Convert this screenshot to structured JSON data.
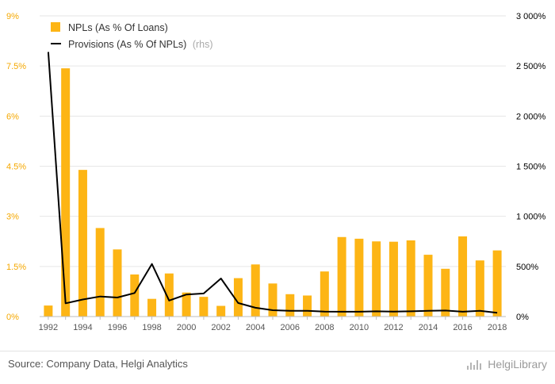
{
  "chart_data": {
    "type": "bar+line",
    "x": [
      "1992",
      "1993",
      "1994",
      "1995",
      "1996",
      "1997",
      "1998",
      "1999",
      "2000",
      "2001",
      "2002",
      "2003",
      "2004",
      "2005",
      "2006",
      "2007",
      "2008",
      "2009",
      "2010",
      "2011",
      "2012",
      "2013",
      "2014",
      "2015",
      "2016",
      "2017",
      "2018"
    ],
    "x_tick_labels": [
      "1992",
      "1994",
      "1996",
      "1998",
      "2000",
      "2002",
      "2004",
      "2006",
      "2008",
      "2010",
      "2012",
      "2014",
      "2016",
      "2018"
    ],
    "series": [
      {
        "name": "NPLs (As % Of Loans)",
        "type": "bar",
        "axis": "left",
        "color": "#FDB515",
        "values": [
          0.33,
          7.43,
          4.39,
          2.65,
          2.01,
          1.26,
          0.53,
          1.29,
          0.72,
          0.59,
          0.32,
          1.15,
          1.56,
          0.99,
          0.67,
          0.63,
          1.35,
          2.38,
          2.33,
          2.25,
          2.24,
          2.28,
          1.85,
          1.43,
          2.4,
          1.68,
          1.98
        ]
      },
      {
        "name": "Provisions (As % Of NPLs)",
        "name_suffix": "(rhs)",
        "type": "line",
        "axis": "right",
        "color": "#000000",
        "values": [
          2640,
          132,
          170,
          200,
          190,
          235,
          525,
          160,
          220,
          230,
          380,
          135,
          88,
          63,
          57,
          57,
          50,
          48,
          48,
          52,
          50,
          52,
          57,
          60,
          48,
          57,
          38
        ]
      }
    ],
    "y_left": {
      "min": 0,
      "max": 9,
      "ticks": [
        "0%",
        "1.5%",
        "3%",
        "4.5%",
        "6%",
        "7.5%",
        "9%"
      ],
      "color": "#F5A800"
    },
    "y_right": {
      "min": 0,
      "max": 3000,
      "ticks": [
        "0%",
        "500%",
        "1 000%",
        "1 500%",
        "2 000%",
        "2 500%",
        "3 000%"
      ],
      "color": "#000000"
    },
    "grid": "horizontal",
    "legend_position": "top-left"
  },
  "footer": {
    "source": "Source: Company Data, Helgi Analytics",
    "brand": "HelgiLibrary"
  }
}
